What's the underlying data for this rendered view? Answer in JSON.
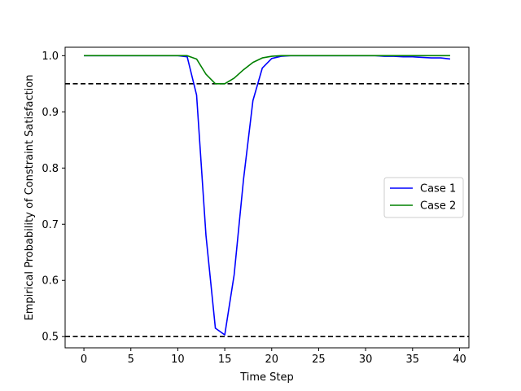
{
  "chart_data": {
    "type": "line",
    "title": "",
    "xlabel": "Time Step",
    "ylabel": "Empirical Probability of Constraint Satisfaction",
    "xlim": [
      -2,
      41
    ],
    "ylim": [
      0.48,
      1.015
    ],
    "xticks": [
      0,
      5,
      10,
      15,
      20,
      25,
      30,
      35,
      40
    ],
    "yticks": [
      0.5,
      0.6,
      0.7,
      0.8,
      0.9,
      1.0
    ],
    "xtick_labels": [
      "0",
      "5",
      "10",
      "15",
      "20",
      "25",
      "30",
      "35",
      "40"
    ],
    "ytick_labels": [
      "0.5",
      "0.6",
      "0.7",
      "0.8",
      "0.9",
      "1.0"
    ],
    "grid": false,
    "legend_position": "center-right",
    "hlines": [
      {
        "y": 0.95,
        "style": "dashed",
        "color": "#000000"
      },
      {
        "y": 0.5,
        "style": "dashed",
        "color": "#000000"
      }
    ],
    "series": [
      {
        "name": "Case 1",
        "color": "#0000ff",
        "x": [
          0,
          1,
          2,
          3,
          4,
          5,
          6,
          7,
          8,
          9,
          10,
          11,
          12,
          13,
          14,
          15,
          16,
          17,
          18,
          19,
          20,
          21,
          22,
          23,
          24,
          25,
          26,
          27,
          28,
          29,
          30,
          31,
          32,
          33,
          34,
          35,
          36,
          37,
          38,
          39
        ],
        "y": [
          1.0,
          1.0,
          1.0,
          1.0,
          1.0,
          1.0,
          1.0,
          1.0,
          1.0,
          1.0,
          1.0,
          0.998,
          0.93,
          0.68,
          0.515,
          0.503,
          0.61,
          0.78,
          0.92,
          0.978,
          0.995,
          0.999,
          1.0,
          1.0,
          1.0,
          1.0,
          1.0,
          1.0,
          1.0,
          1.0,
          1.0,
          1.0,
          0.999,
          0.999,
          0.998,
          0.998,
          0.997,
          0.996,
          0.996,
          0.994
        ]
      },
      {
        "name": "Case 2",
        "color": "#008000",
        "x": [
          0,
          1,
          2,
          3,
          4,
          5,
          6,
          7,
          8,
          9,
          10,
          11,
          12,
          13,
          14,
          15,
          16,
          17,
          18,
          19,
          20,
          21,
          22,
          23,
          24,
          25,
          26,
          27,
          28,
          29,
          30,
          31,
          32,
          33,
          34,
          35,
          36,
          37,
          38,
          39
        ],
        "y": [
          1.0,
          1.0,
          1.0,
          1.0,
          1.0,
          1.0,
          1.0,
          1.0,
          1.0,
          1.0,
          1.0,
          1.0,
          0.994,
          0.967,
          0.95,
          0.95,
          0.96,
          0.975,
          0.988,
          0.996,
          0.999,
          1.0,
          1.0,
          1.0,
          1.0,
          1.0,
          1.0,
          1.0,
          1.0,
          1.0,
          1.0,
          1.0,
          1.0,
          1.0,
          1.0,
          1.0,
          1.0,
          1.0,
          1.0,
          1.0
        ]
      }
    ]
  }
}
